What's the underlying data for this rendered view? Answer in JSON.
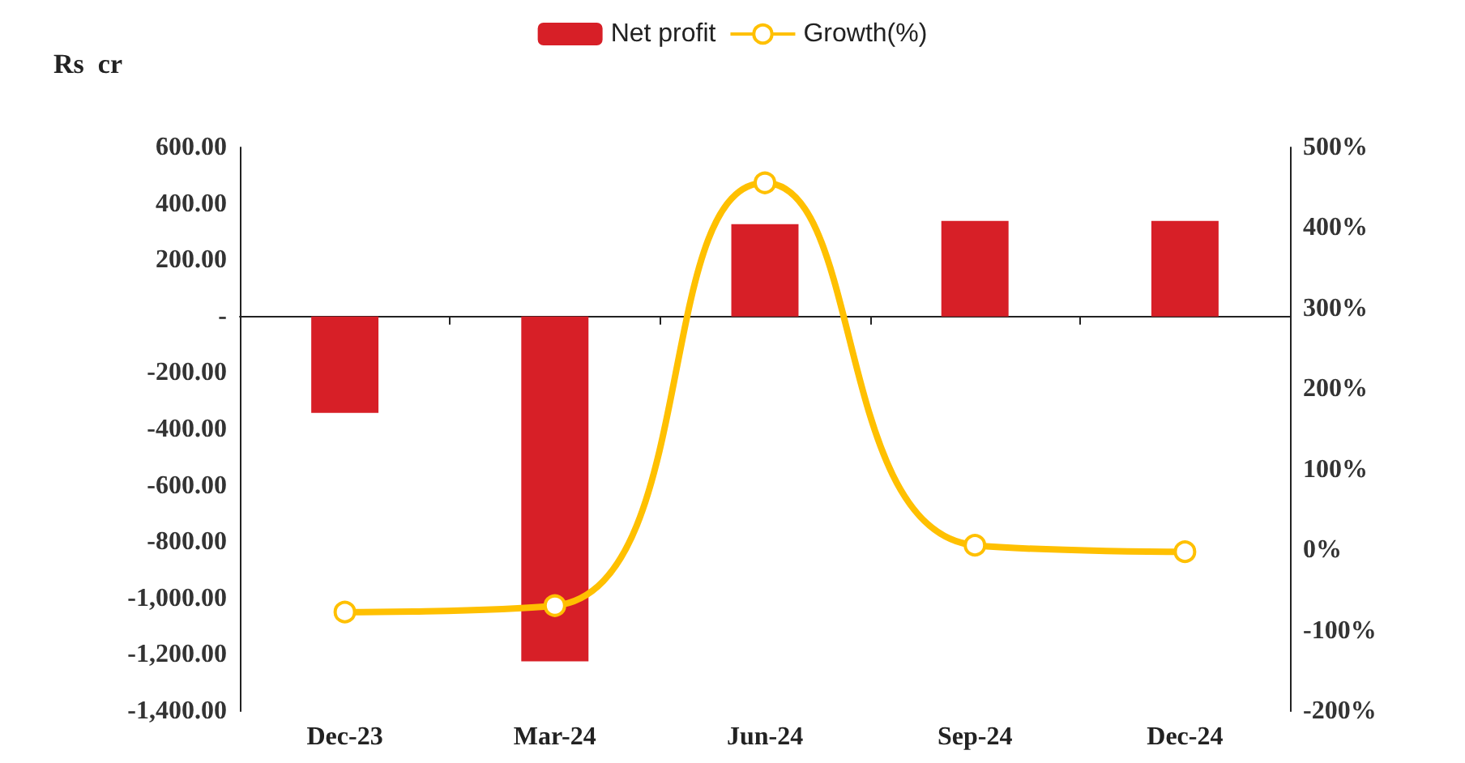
{
  "chart_data": {
    "type": "bar",
    "ylabel": "Rs  cr",
    "categories": [
      "Dec-23",
      "Mar-24",
      "Jun-24",
      "Sep-24",
      "Dec-24"
    ],
    "series": [
      {
        "name": "Net profit",
        "color": "#d71f27",
        "values": [
          -342,
          -1223,
          328,
          339,
          339
        ]
      },
      {
        "name": "Growth(%)",
        "type": "line",
        "axis": "y2",
        "color": "#ffc000",
        "marker": "circle",
        "values": [
          -77,
          -69,
          456,
          6,
          -2
        ]
      }
    ],
    "ylim": [
      -1400,
      600
    ],
    "yticks": [
      {
        "value": -1400,
        "label": "-1,400.00"
      },
      {
        "value": -1200,
        "label": "-1,200.00"
      },
      {
        "value": -1000,
        "label": "-1,000.00"
      },
      {
        "value": -800,
        "label": "-800.00"
      },
      {
        "value": -600,
        "label": "-600.00"
      },
      {
        "value": -400,
        "label": "-400.00"
      },
      {
        "value": -200,
        "label": "-200.00"
      },
      {
        "value": 0,
        "label": "-"
      },
      {
        "value": 200,
        "label": "200.00"
      },
      {
        "value": 400,
        "label": "400.00"
      },
      {
        "value": 600,
        "label": "600.00"
      }
    ],
    "y2lim": [
      -200,
      500
    ],
    "y2ticks": [
      {
        "value": -200,
        "label": "-200%"
      },
      {
        "value": -100,
        "label": "-100%"
      },
      {
        "value": 0,
        "label": "0%"
      },
      {
        "value": 100,
        "label": "100%"
      },
      {
        "value": 200,
        "label": "200%"
      },
      {
        "value": 300,
        "label": "300%"
      },
      {
        "value": 400,
        "label": "400%"
      },
      {
        "value": 500,
        "label": "500%"
      }
    ],
    "legend": "top"
  }
}
